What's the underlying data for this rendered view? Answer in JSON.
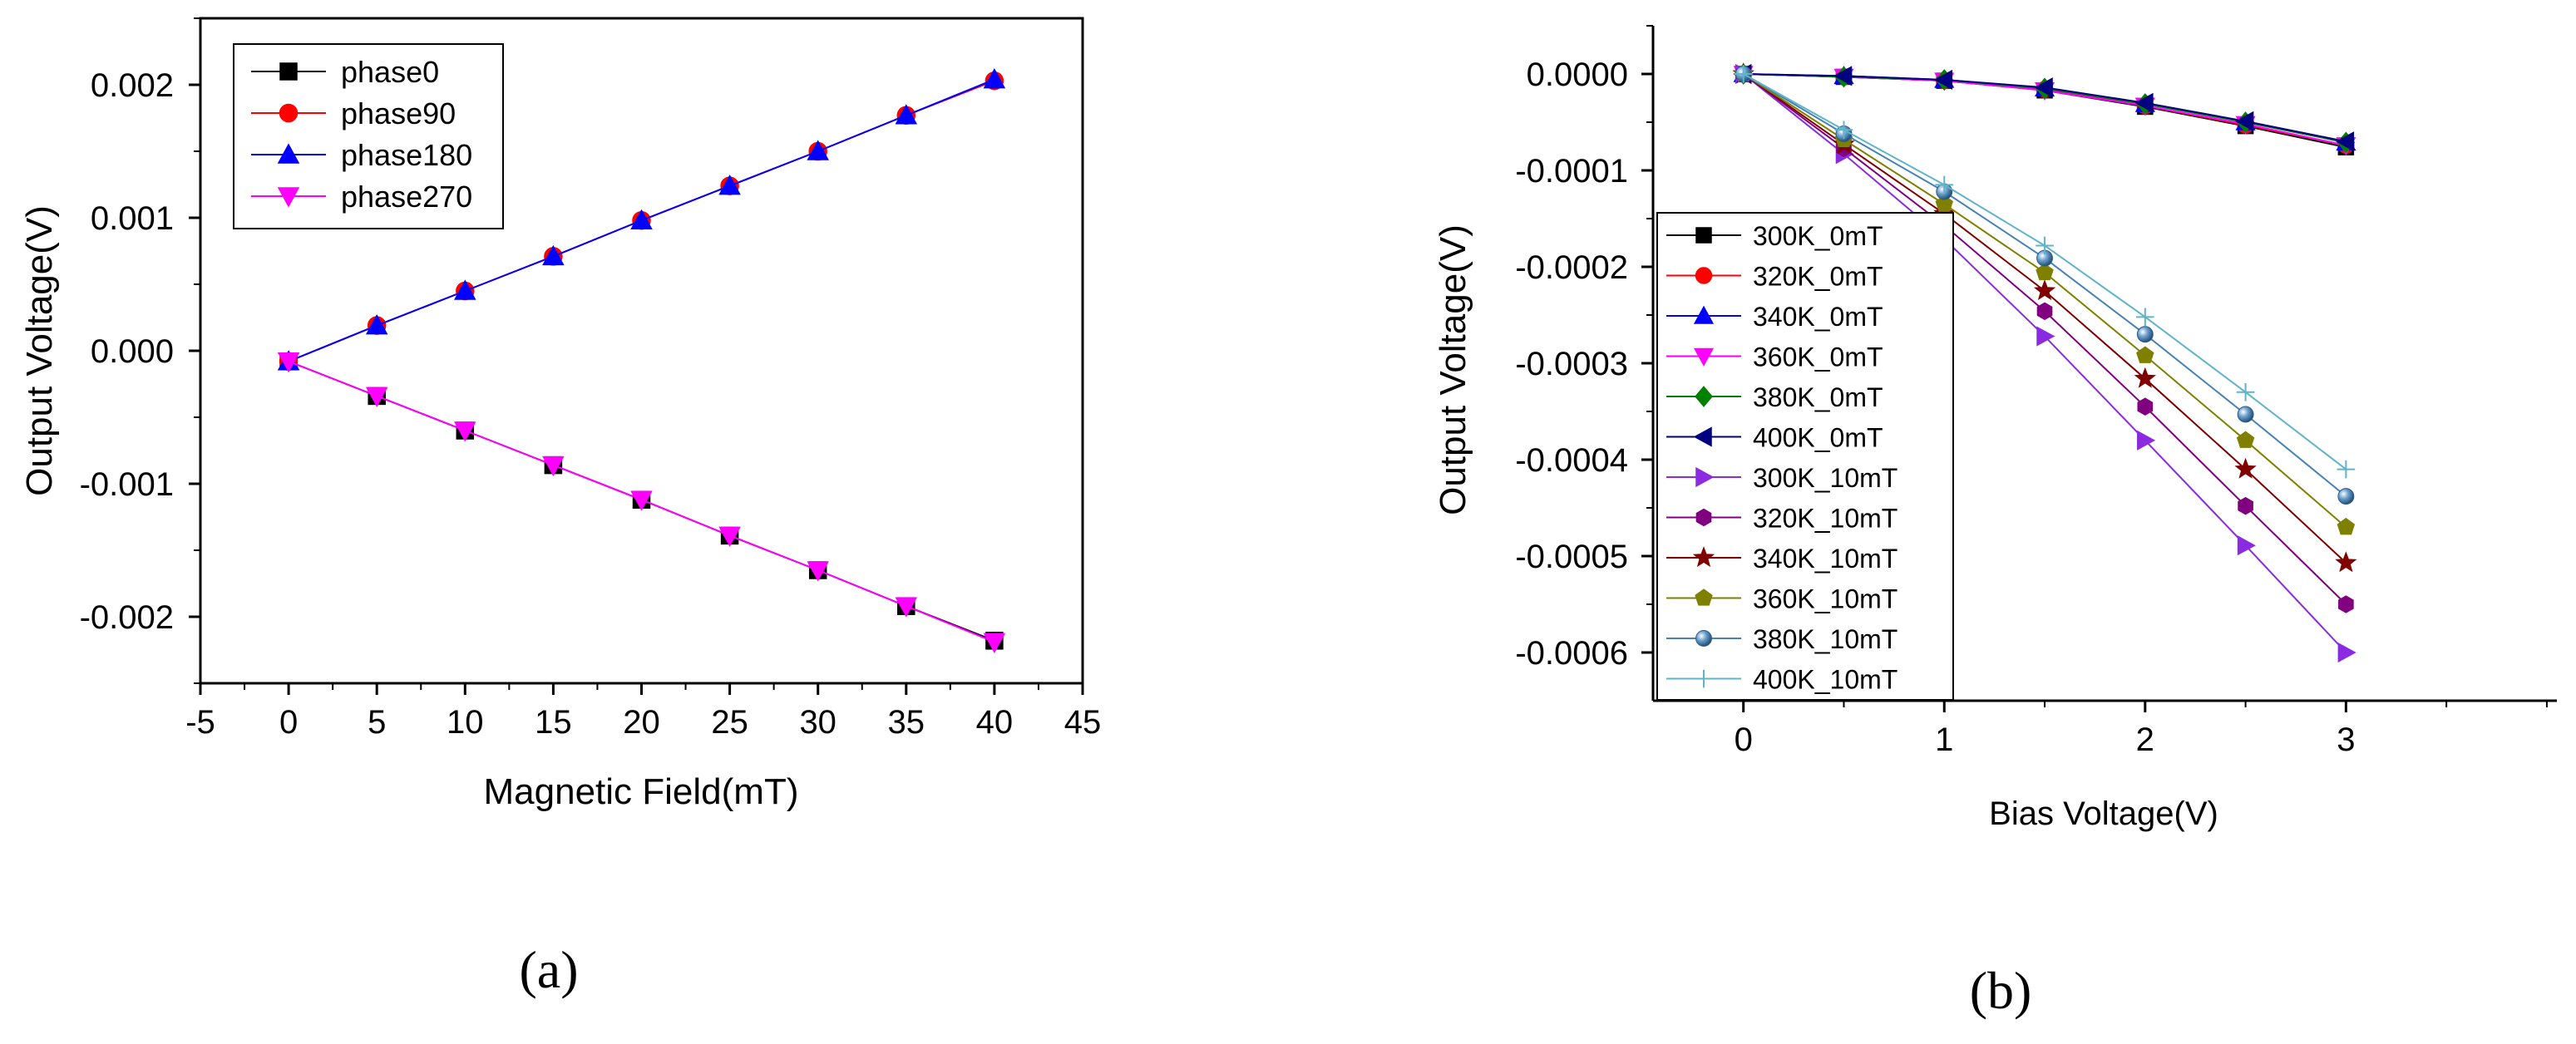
{
  "chart_data": [
    {
      "type": "line",
      "panel_label": "(a)",
      "xlabel": "Magnetic Field(mT)",
      "ylabel": "Output Voltage(V)",
      "xlim": [
        -5,
        45
      ],
      "ylim": [
        -0.0025,
        0.0025
      ],
      "xticks": [
        "-5",
        "0",
        "5",
        "10",
        "15",
        "20",
        "25",
        "30",
        "35",
        "40",
        "45"
      ],
      "yticks": [
        "0.002",
        "0.001",
        "0.000",
        "-0.001",
        "-0.002"
      ],
      "ytick_values": [
        0.002,
        0.001,
        0.0,
        -0.001,
        -0.002
      ],
      "legend_position": "top-left",
      "x": [
        0,
        5,
        10,
        15,
        20,
        25,
        30,
        35,
        40
      ],
      "series": [
        {
          "name": "phase0",
          "color": "#000000",
          "marker": "square",
          "values": [
            -8e-05,
            -0.00034,
            -0.0006,
            -0.00086,
            -0.00112,
            -0.00139,
            -0.00165,
            -0.00192,
            -0.00218
          ]
        },
        {
          "name": "phase90",
          "color": "#ff0000",
          "marker": "circle",
          "values": [
            -8e-05,
            0.00019,
            0.00045,
            0.00071,
            0.00098,
            0.00124,
            0.0015,
            0.00177,
            0.00203
          ]
        },
        {
          "name": "phase180",
          "color": "#0000ff",
          "marker": "triangle-up",
          "values": [
            -8e-05,
            0.00019,
            0.00045,
            0.00071,
            0.00098,
            0.00124,
            0.0015,
            0.00177,
            0.00204
          ]
        },
        {
          "name": "phase270",
          "color": "#ff00ff",
          "marker": "triangle-down",
          "values": [
            -8e-05,
            -0.00034,
            -0.0006,
            -0.00086,
            -0.00112,
            -0.00139,
            -0.00165,
            -0.00192,
            -0.00219
          ]
        }
      ]
    },
    {
      "type": "line",
      "panel_label": "(b)",
      "xlabel": "Bias Voltage(V)",
      "ylabel": "Output Voltage(V)",
      "xlim": [
        -0.45,
        4.05
      ],
      "ylim": [
        -0.00065,
        5e-05
      ],
      "xticks": [
        "0",
        "1",
        "2",
        "3"
      ],
      "xtick_values": [
        0,
        1,
        2,
        3
      ],
      "yticks": [
        "0.0000",
        "-0.0001",
        "-0.0002",
        "-0.0003",
        "-0.0004",
        "-0.0005",
        "-0.0006"
      ],
      "ytick_values": [
        0.0,
        -0.0001,
        -0.0002,
        -0.0003,
        -0.0004,
        -0.0005,
        -0.0006
      ],
      "legend_position": "left",
      "x": [
        0,
        0.5,
        1,
        1.5,
        2,
        2.5,
        3
      ],
      "series": [
        {
          "name": "300K_0mT",
          "color": "#000000",
          "marker": "square",
          "values": [
            0,
            -3e-06,
            -7e-06,
            -1.7e-05,
            -3.4e-05,
            -5.4e-05,
            -7.6e-05
          ]
        },
        {
          "name": "320K_0mT",
          "color": "#ff0000",
          "marker": "circle",
          "values": [
            0,
            -3e-06,
            -7e-06,
            -1.6e-05,
            -3.3e-05,
            -5.3e-05,
            -7.4e-05
          ]
        },
        {
          "name": "340K_0mT",
          "color": "#0000ff",
          "marker": "triangle-up",
          "values": [
            0,
            -2e-06,
            -6e-06,
            -1.5e-05,
            -3.1e-05,
            -5e-05,
            -7.1e-05
          ]
        },
        {
          "name": "360K_0mT",
          "color": "#ff00ff",
          "marker": "triangle-down",
          "values": [
            0,
            -3e-06,
            -7e-06,
            -1.7e-05,
            -3.3e-05,
            -5.2e-05,
            -7.4e-05
          ]
        },
        {
          "name": "380K_0mT",
          "color": "#008000",
          "marker": "diamond",
          "values": [
            0,
            -3e-06,
            -6e-06,
            -1.5e-05,
            -3.1e-05,
            -5e-05,
            -7.1e-05
          ]
        },
        {
          "name": "400K_0mT",
          "color": "#000080",
          "marker": "triangle-left",
          "values": [
            0,
            -2e-06,
            -6e-06,
            -1.4e-05,
            -3e-05,
            -4.9e-05,
            -7e-05
          ]
        },
        {
          "name": "300K_10mT",
          "color": "#8a2be2",
          "marker": "triangle-right",
          "values": [
            0,
            -8.3e-05,
            -0.000171,
            -0.000272,
            -0.00038,
            -0.000489,
            -0.0006
          ]
        },
        {
          "name": "320K_10mT",
          "color": "#800080",
          "marker": "hexagon",
          "values": [
            0,
            -7.7e-05,
            -0.000157,
            -0.000246,
            -0.000345,
            -0.000448,
            -0.00055
          ]
        },
        {
          "name": "340K_10mT",
          "color": "#800000",
          "marker": "star",
          "values": [
            0,
            -7.3e-05,
            -0.000145,
            -0.000225,
            -0.000316,
            -0.00041,
            -0.000507
          ]
        },
        {
          "name": "360K_10mT",
          "color": "#808000",
          "marker": "pentagon",
          "values": [
            0,
            -6.8e-05,
            -0.000135,
            -0.000206,
            -0.000292,
            -0.00038,
            -0.00047
          ]
        },
        {
          "name": "380K_10mT",
          "color": "#4682b4",
          "marker": "sphere",
          "values": [
            0,
            -6.2e-05,
            -0.000122,
            -0.000191,
            -0.00027,
            -0.000353,
            -0.000438
          ]
        },
        {
          "name": "400K_10mT",
          "color": "#5fb4c8",
          "marker": "plus",
          "values": [
            0,
            -5.8e-05,
            -0.000115,
            -0.000178,
            -0.000252,
            -0.00033,
            -0.00041
          ]
        }
      ]
    }
  ]
}
